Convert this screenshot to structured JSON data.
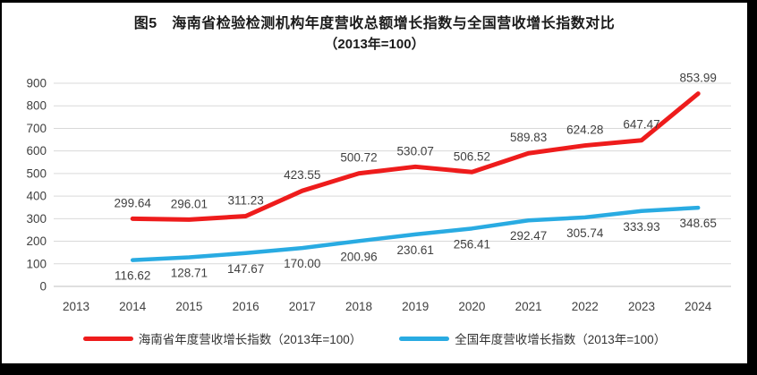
{
  "figure": {
    "frame_color": "#000000",
    "background": "#ffffff"
  },
  "chart_data": {
    "type": "line",
    "title": "图5　海南省检验检测机构年度营收总额增长指数与全国营收增长指数对比",
    "subtitle": "（2013年=100）",
    "categories": [
      "2013",
      "2014",
      "2015",
      "2016",
      "2017",
      "2018",
      "2019",
      "2020",
      "2021",
      "2022",
      "2023",
      "2024"
    ],
    "series": [
      {
        "name": "海南省年度营收增长指数（2013年=100）",
        "color": "#ee1c1c",
        "values": [
          null,
          "299.64",
          "296.01",
          "311.23",
          "423.55",
          "500.72",
          "530.07",
          "506.52",
          "589.83",
          "624.28",
          "647.47",
          "853.99"
        ]
      },
      {
        "name": "全国年度营收增长指数（2013年=100）",
        "color": "#29abe2",
        "values": [
          null,
          "116.62",
          "128.71",
          "147.67",
          "170.00",
          "200.96",
          "230.61",
          "256.41",
          "292.47",
          "305.74",
          "333.93",
          "348.65"
        ]
      }
    ],
    "xlabel": "",
    "ylabel": "",
    "ylim": [
      0,
      900
    ],
    "ytick_step": 100,
    "grid": true,
    "grid_color": "#d9d9d9",
    "axis_color": "#bfbfbf",
    "label_color": "#404040",
    "legend_position": "bottom"
  }
}
